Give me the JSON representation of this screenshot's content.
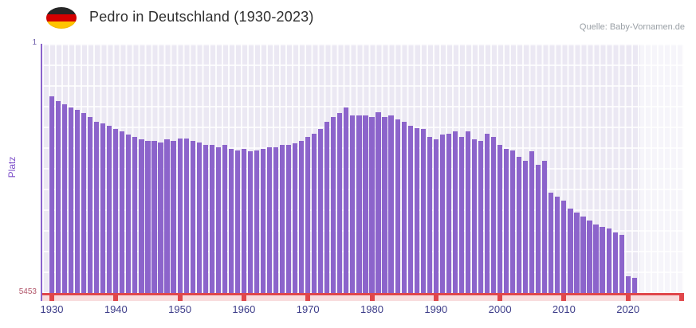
{
  "header": {
    "title": "Pedro in Deutschland (1930-2023)",
    "source": "Quelle: Baby-Vornamen.de",
    "flag_icon": "germany-flag"
  },
  "chart_data": {
    "type": "bar",
    "title": "Pedro in Deutschland (1930-2023)",
    "xlabel": "",
    "ylabel": "Platz",
    "grid": true,
    "legend": "none",
    "y_axis": {
      "min": 1,
      "max": 5453,
      "inverted": true,
      "top_label": "1",
      "bottom_label": "5453"
    },
    "x_ticks": [
      1930,
      1940,
      1950,
      1960,
      1970,
      1980,
      1990,
      2000,
      2010,
      2020
    ],
    "years": [
      1930,
      1931,
      1932,
      1933,
      1934,
      1935,
      1936,
      1937,
      1938,
      1939,
      1940,
      1941,
      1942,
      1943,
      1944,
      1945,
      1946,
      1947,
      1948,
      1949,
      1950,
      1951,
      1952,
      1953,
      1954,
      1955,
      1956,
      1957,
      1958,
      1959,
      1960,
      1961,
      1962,
      1963,
      1964,
      1965,
      1966,
      1967,
      1968,
      1969,
      1970,
      1971,
      1972,
      1973,
      1974,
      1975,
      1976,
      1977,
      1978,
      1979,
      1980,
      1981,
      1982,
      1983,
      1984,
      1985,
      1986,
      1987,
      1988,
      1989,
      1990,
      1991,
      1992,
      1993,
      1994,
      1995,
      1996,
      1997,
      1998,
      1999,
      2000,
      2001,
      2002,
      2003,
      2004,
      2005,
      2006,
      2007,
      2008,
      2009,
      2010,
      2011,
      2012,
      2013,
      2014,
      2015,
      2016,
      2017,
      2018,
      2019,
      2020,
      2021,
      2022,
      2023
    ],
    "ranks": [
      1150,
      1250,
      1330,
      1400,
      1440,
      1520,
      1610,
      1700,
      1750,
      1790,
      1870,
      1920,
      1990,
      2040,
      2090,
      2130,
      2130,
      2160,
      2090,
      2130,
      2080,
      2080,
      2130,
      2160,
      2210,
      2210,
      2260,
      2210,
      2300,
      2330,
      2300,
      2350,
      2330,
      2300,
      2260,
      2260,
      2210,
      2210,
      2180,
      2130,
      2040,
      1960,
      1870,
      1700,
      1610,
      1520,
      1400,
      1570,
      1570,
      1570,
      1610,
      1490,
      1610,
      1560,
      1660,
      1700,
      1790,
      1840,
      1870,
      2040,
      2090,
      1990,
      1960,
      1920,
      2040,
      1920,
      2090,
      2130,
      1960,
      2040,
      2210,
      2300,
      2330,
      2470,
      2560,
      2350,
      2640,
      2560,
      3260,
      3350,
      3430,
      3600,
      3690,
      3780,
      3860,
      3950,
      4000,
      4040,
      4120,
      4180,
      5080,
      5120,
      null,
      null
    ],
    "no_data_years": [
      2022,
      2023
    ],
    "colors": {
      "bar": "#8c64cb",
      "plot_bg": "#ebe8f3",
      "grid": "#ffffff",
      "x_axis": "#e0474b",
      "y_axis": "#8a63cc",
      "tick_band": "#f8dcdd",
      "year_label": "#3e3e8a",
      "y_label": "#7d4fc9",
      "title": "#2f2f2f",
      "source": "#9aa0a6"
    }
  }
}
